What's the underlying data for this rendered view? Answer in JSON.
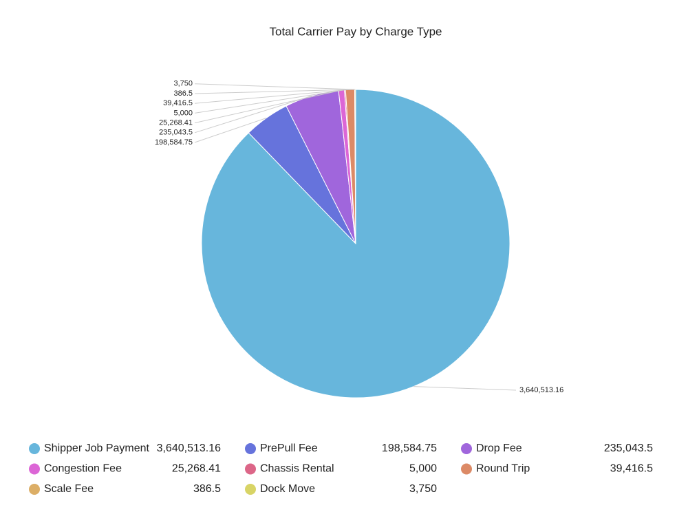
{
  "chart_data": {
    "type": "pie",
    "title": "Total Carrier Pay by Charge Type",
    "categories": [
      "Shipper Job Payment",
      "PrePull Fee",
      "Drop Fee",
      "Congestion Fee",
      "Chassis Rental",
      "Round Trip",
      "Scale Fee",
      "Dock Move"
    ],
    "values": [
      3640513.16,
      198584.75,
      235043.5,
      25268.41,
      5000,
      39416.5,
      386.5,
      3750
    ],
    "value_labels": [
      "3,640,513.16",
      "198,584.75",
      "235,043.5",
      "25,268.41",
      "5,000",
      "39,416.5",
      "386.5",
      "3,750"
    ],
    "colors": [
      "#67b6dc",
      "#6673dc",
      "#a066dc",
      "#dc66d6",
      "#dc6688",
      "#dc8a66",
      "#dcae66",
      "#d8d466"
    ]
  }
}
